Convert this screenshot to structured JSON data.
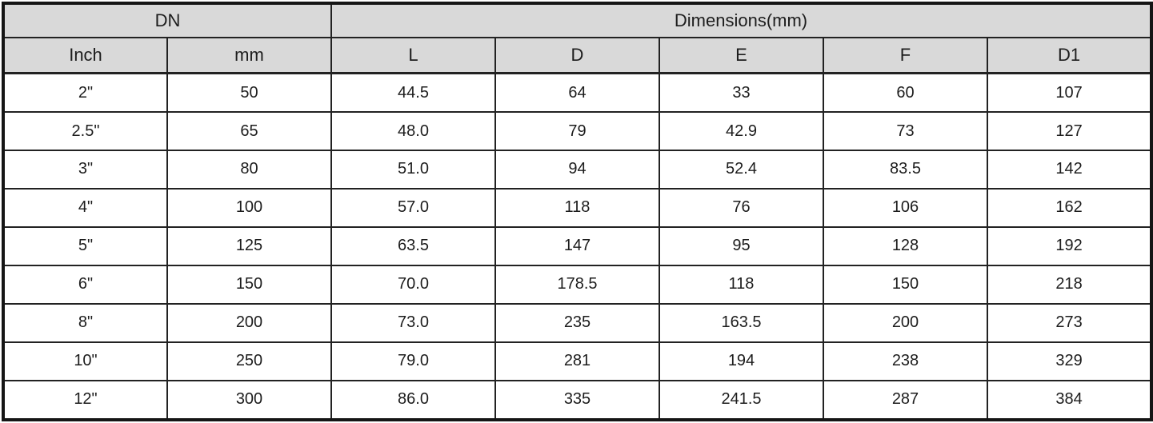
{
  "table": {
    "group_headers": [
      {
        "label": "DN",
        "colspan": 2
      },
      {
        "label": "Dimensions(mm)",
        "colspan": 5
      }
    ],
    "columns": [
      "Inch",
      "mm",
      "L",
      "D",
      "E",
      "F",
      "D1"
    ],
    "rows": [
      [
        "2\"",
        "50",
        "44.5",
        "64",
        "33",
        "60",
        "107"
      ],
      [
        "2.5\"",
        "65",
        "48.0",
        "79",
        "42.9",
        "73",
        "127"
      ],
      [
        "3\"",
        "80",
        "51.0",
        "94",
        "52.4",
        "83.5",
        "142"
      ],
      [
        "4\"",
        "100",
        "57.0",
        "118",
        "76",
        "106",
        "162"
      ],
      [
        "5\"",
        "125",
        "63.5",
        "147",
        "95",
        "128",
        "192"
      ],
      [
        "6\"",
        "150",
        "70.0",
        "178.5",
        "118",
        "150",
        "218"
      ],
      [
        "8\"",
        "200",
        "73.0",
        "235",
        "163.5",
        "200",
        "273"
      ],
      [
        "10\"",
        "250",
        "79.0",
        "281",
        "194",
        "238",
        "329"
      ],
      [
        "12\"",
        "300",
        "86.0",
        "335",
        "241.5",
        "287",
        "384"
      ]
    ],
    "colors": {
      "header_bg": "#d9d9d9",
      "row_bg": "#ffffff",
      "border": "#222222",
      "outer_border": "#151515",
      "text": "#1d1d1d"
    }
  }
}
